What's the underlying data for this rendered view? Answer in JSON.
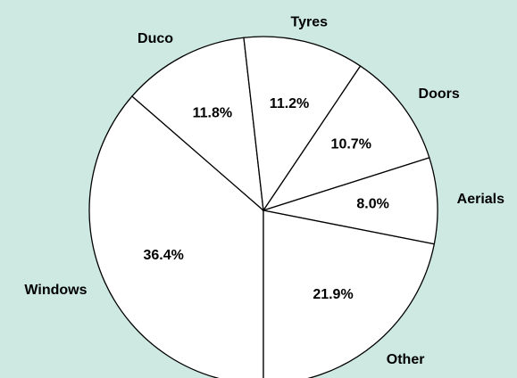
{
  "chart_data": {
    "type": "pie",
    "categories": [
      "Windows",
      "Duco",
      "Tyres",
      "Doors",
      "Aerials",
      "Other"
    ],
    "values": [
      36.4,
      11.8,
      11.2,
      10.7,
      8.0,
      21.9
    ],
    "value_labels": [
      "36.4%",
      "11.8%",
      "11.2%",
      "10.7%",
      "8.0%",
      "21.9%"
    ],
    "color": "#ffffff"
  }
}
